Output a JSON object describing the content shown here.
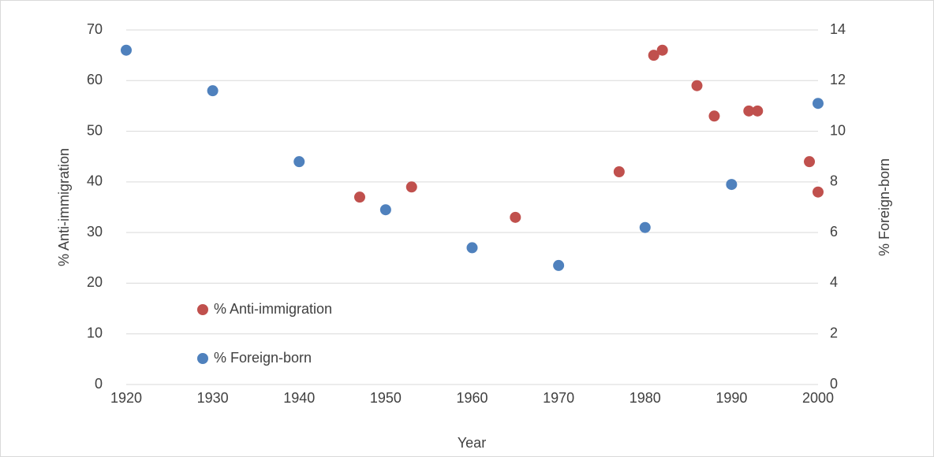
{
  "chart_data": {
    "type": "scatter",
    "x_label": "Year",
    "y_label": "% Anti-immigration",
    "y2_label": "% Foreign-born",
    "xlim": [
      1920,
      2000
    ],
    "xticks": [
      1920,
      1930,
      1940,
      1950,
      1960,
      1970,
      1980,
      1990,
      2000
    ],
    "ylim": [
      0,
      70
    ],
    "yticks": [
      0,
      10,
      20,
      30,
      40,
      50,
      60,
      70
    ],
    "y2lim": [
      0,
      14
    ],
    "y2ticks": [
      0,
      2,
      4,
      6,
      8,
      10,
      12,
      14
    ],
    "grid": true,
    "legend_position": "lower-left",
    "series": [
      {
        "name": "% Anti-immigration",
        "color": "#c0504d",
        "x": [
          1947,
          1953,
          1965,
          1977,
          1981,
          1982,
          1986,
          1988,
          1992,
          1993,
          1999,
          2000
        ],
        "values": [
          37,
          39,
          33,
          42,
          65,
          66,
          59,
          53,
          54,
          54,
          44,
          38
        ]
      },
      {
        "name": "% Foreign-born",
        "color": "#4f81bd",
        "axis": "y2",
        "x": [
          1920,
          1930,
          1940,
          1950,
          1960,
          1970,
          1980,
          1990,
          2000
        ],
        "values": [
          13.2,
          11.6,
          8.8,
          6.9,
          5.4,
          4.7,
          6.2,
          7.9,
          11.1
        ]
      }
    ]
  }
}
